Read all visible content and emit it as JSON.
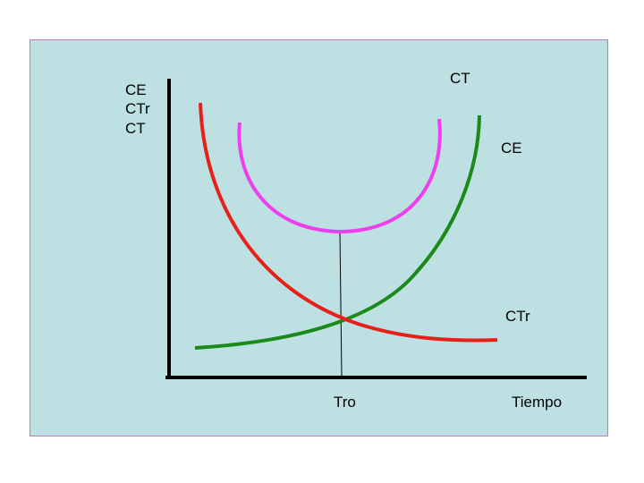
{
  "diagram": {
    "background_color": "#bde0e3",
    "border_color": "#c07ac0",
    "y_axis_labels": [
      "CE",
      "CTr",
      "CT"
    ],
    "x_axis_label": "Tiempo",
    "tick_label": "Tro",
    "curve_labels": {
      "ct": "CT",
      "ce": "CE",
      "ctr": "CTr"
    },
    "curve_colors": {
      "ct": "#ee3fee",
      "ce": "#1a8a1a",
      "ctr": "#e8201a"
    }
  }
}
